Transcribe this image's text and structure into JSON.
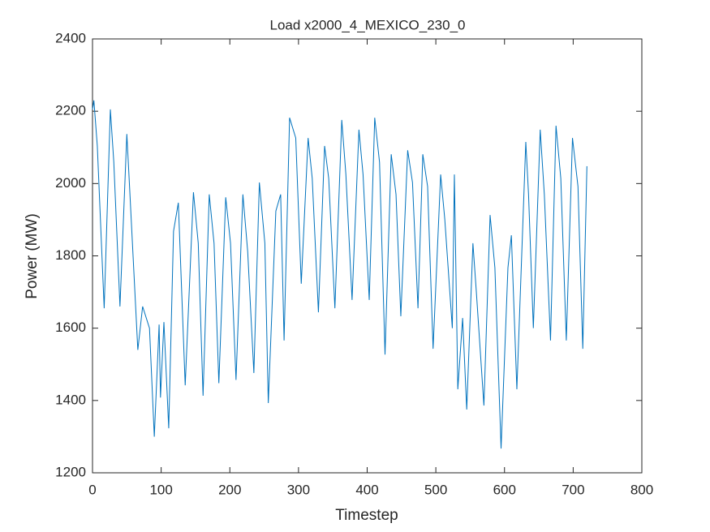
{
  "chart_data": {
    "type": "line",
    "title": "Load x2000_4_MEXICO_230_0",
    "x_label": "Timestep",
    "y_label": "Power (MW)",
    "xlim": [
      0,
      800
    ],
    "xticks": [
      0,
      100,
      200,
      300,
      400,
      500,
      600,
      700,
      800
    ],
    "ylim": [
      1200,
      2400
    ],
    "yticks": [
      1200,
      1400,
      1600,
      1800,
      2000,
      2200,
      2400
    ],
    "grid": false,
    "series": [
      {
        "color": "#0072bd",
        "x": [
          0,
          2,
          7,
          17,
          26,
          31,
          40,
          50,
          54,
          66,
          73,
          83,
          90,
          97,
          99,
          104,
          111,
          118,
          125,
          135,
          147,
          154,
          161,
          170,
          177,
          184,
          194,
          201,
          209,
          219,
          226,
          235,
          243,
          251,
          256,
          267,
          274,
          279,
          287,
          296,
          304,
          314,
          320,
          329,
          338,
          344,
          353,
          363,
          369,
          378,
          388,
          394,
          403,
          411,
          418,
          426,
          435,
          442,
          449,
          459,
          466,
          474,
          481,
          488,
          496,
          507,
          513,
          524,
          527,
          532,
          539,
          545,
          554,
          559,
          570,
          579,
          586,
          595,
          605,
          610,
          618,
          631,
          635,
          642,
          652,
          658,
          667,
          675,
          682,
          690,
          699,
          707,
          714,
          720
        ],
        "values": [
          2205,
          2230,
          2104,
          1655,
          2205,
          2060,
          1660,
          2137,
          1990,
          1540,
          1660,
          1600,
          1300,
          1610,
          1408,
          1617,
          1323,
          1868,
          1947,
          1442,
          1976,
          1835,
          1413,
          1970,
          1835,
          1448,
          1962,
          1835,
          1457,
          1970,
          1812,
          1476,
          2003,
          1835,
          1393,
          1924,
          1970,
          1566,
          2182,
          2126,
          1723,
          2126,
          2014,
          1644,
          2104,
          2014,
          1655,
          2176,
          2025,
          1678,
          2149,
          2025,
          1678,
          2182,
          2059,
          1527,
          2081,
          1970,
          1633,
          2092,
          2003,
          1655,
          2081,
          1992,
          1543,
          2025,
          1902,
          1600,
          2025,
          1431,
          1628,
          1375,
          1835,
          1700,
          1386,
          1913,
          1767,
          1267,
          1767,
          1857,
          1431,
          2115,
          1970,
          1600,
          2149,
          1970,
          1566,
          2160,
          2014,
          1566,
          2126,
          1992,
          1543,
          2048
        ]
      }
    ]
  }
}
